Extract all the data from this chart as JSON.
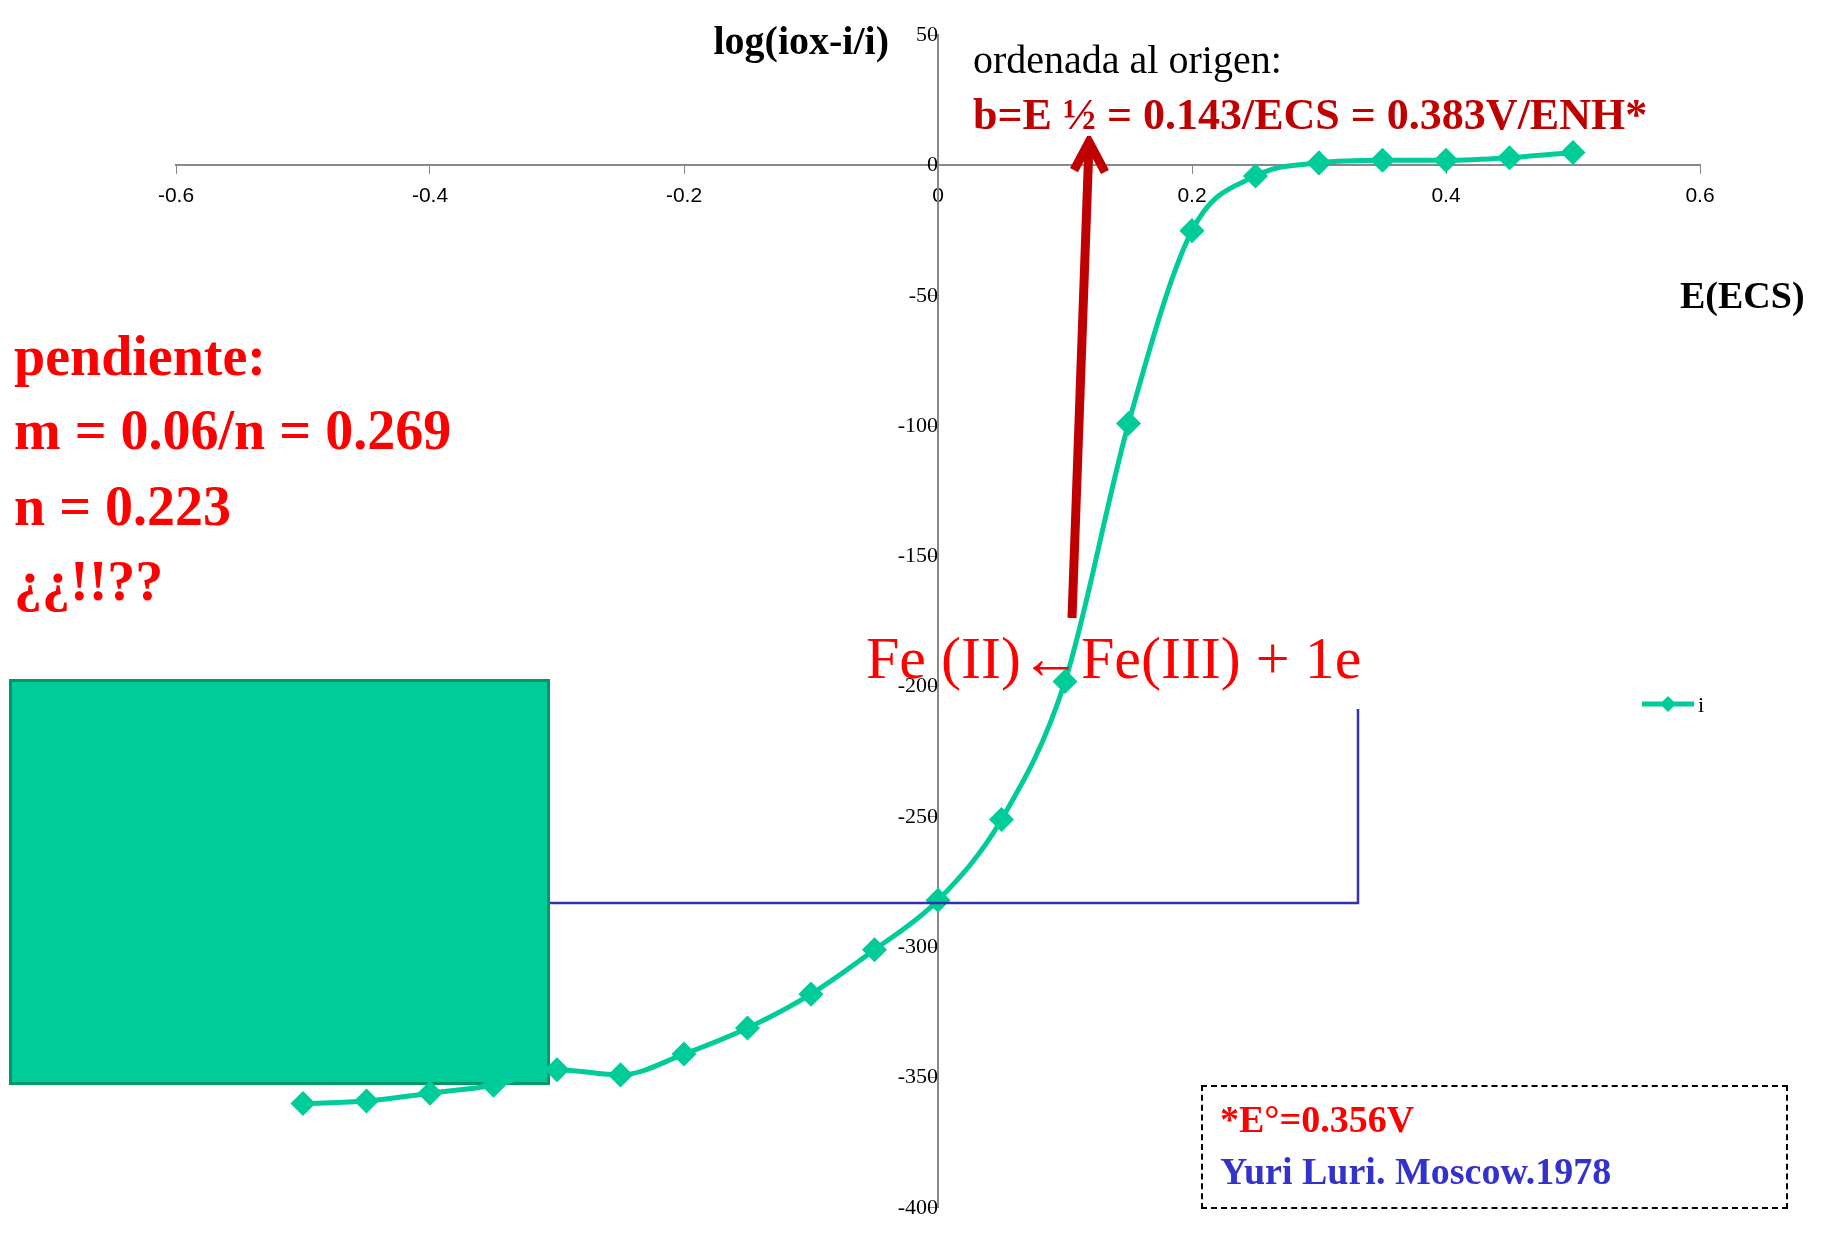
{
  "chart_data": {
    "type": "line",
    "xlabel": "E(ECS)",
    "ylabel": "log(iox-i/i)",
    "x": [
      -0.5,
      -0.45,
      -0.4,
      -0.35,
      -0.3,
      -0.25,
      -0.2,
      -0.15,
      -0.1,
      -0.05,
      0,
      0.05,
      0.1,
      0.15,
      0.2,
      0.25,
      0.3,
      0.35,
      0.4,
      0.45,
      0.5
    ],
    "series": [
      {
        "name": "i",
        "color": "#00cc99",
        "values": [
          -360,
          -359,
          -356,
          -353,
          -347,
          -349,
          -341,
          -331,
          -318,
          -301,
          -282,
          -251,
          -198,
          -99,
          -25,
          -4,
          1,
          2,
          2,
          3,
          5
        ]
      }
    ],
    "xlim": [
      -0.6,
      0.6
    ],
    "xticks": [
      -0.6,
      -0.4,
      -0.2,
      0,
      0.2,
      0.4,
      0.6
    ],
    "ylim": [
      -400,
      50
    ],
    "yticks": [
      -400,
      -350,
      -300,
      -250,
      -200,
      -150,
      -100,
      -50,
      0,
      50
    ],
    "grid": false,
    "legend": "right",
    "marker": "diamond",
    "line_style": "solid",
    "annotations": [
      "ordenada al origen:",
      "b=E ½  = 0.143/ECS = 0.383V/ENH*",
      "pendiente:",
      "m = 0.06/n = 0.269",
      "n = 0.223",
      "¿¿!!??",
      "Fe (II)←Fe(III) + 1e",
      "*E°=0.356V",
      "Yuri Luri. Moscow.1978"
    ]
  }
}
